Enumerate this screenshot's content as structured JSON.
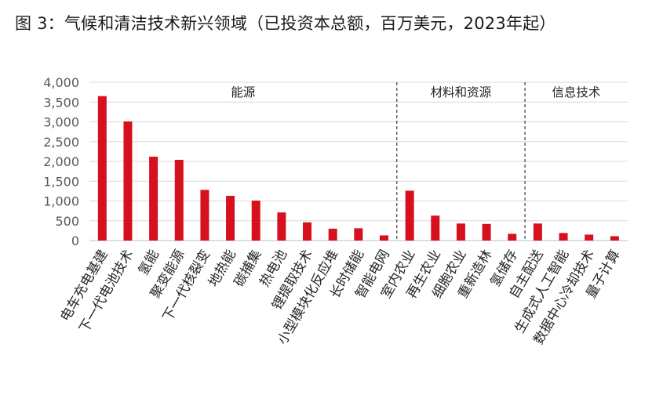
{
  "figure_title": "图 3：气候和清洁技术新兴领域（已投资本总额，百万美元，2023年起）",
  "chart_data": {
    "type": "bar",
    "title": "图 3：气候和清洁技术新兴领域（已投资本总额，百万美元，2023年起）",
    "xlabel": "",
    "ylabel": "",
    "ylim": [
      0,
      4000
    ],
    "yticks": [
      0,
      500,
      1000,
      1500,
      2000,
      2500,
      3000,
      3500,
      4000
    ],
    "ytick_labels": [
      "0",
      "500",
      "1,000",
      "1,500",
      "2,000",
      "2,500",
      "3,000",
      "3,500",
      "4,000"
    ],
    "grid": "horizontal",
    "bar_color": "#d7101e",
    "categories": [
      "电车充电基建",
      "下一代电池技术",
      "氢能",
      "聚变能源",
      "下一代核裂变",
      "地热能",
      "碳捕集",
      "热电池",
      "锂提取技术",
      "小型模块化反应堆",
      "长时储能",
      "智能电网",
      "室内农业",
      "再生农业",
      "细胞农业",
      "重新造林",
      "氢储存",
      "自主配送",
      "生成式人工智能",
      "数据中心冷却技术",
      "量子计算"
    ],
    "values": [
      3650,
      3010,
      2120,
      2040,
      1280,
      1130,
      1010,
      710,
      460,
      300,
      310,
      130,
      1260,
      630,
      430,
      420,
      170,
      430,
      190,
      150,
      110
    ],
    "groups": [
      {
        "label": "能源",
        "start": 0,
        "end": 11
      },
      {
        "label": "材料和资源",
        "start": 12,
        "end": 16
      },
      {
        "label": "信息技术",
        "start": 17,
        "end": 20
      }
    ]
  }
}
